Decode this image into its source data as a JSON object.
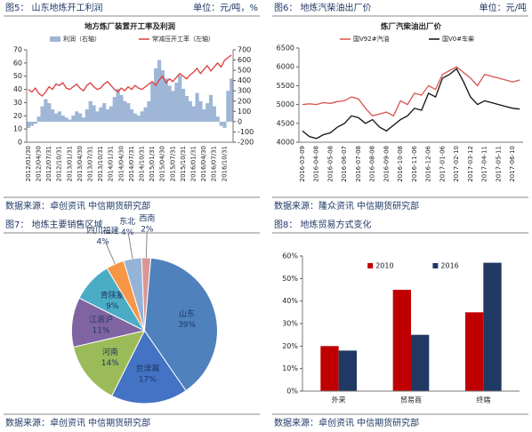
{
  "chart_data": [
    {
      "type": "combo",
      "figure_label": "图5：  山东地炼开工利润",
      "unit": "单位：元/吨，%",
      "source": "数据来源：卓创资讯  中信期货研究部",
      "title": "地方炼厂装置开工率及利润",
      "categories": [
        "2012/01/30",
        null,
        null,
        "2012/04/30",
        null,
        null,
        "2012/07/31",
        null,
        null,
        "2012/10/31",
        null,
        null,
        "2013/01/31",
        null,
        null,
        "2013/04/30",
        null,
        null,
        "2013/07/31",
        null,
        null,
        "2013/10/31",
        null,
        null,
        "2014/01/31",
        null,
        null,
        "2014/04/30",
        null,
        null,
        "2014/07/31",
        null,
        null,
        "2014/10/31",
        null,
        null,
        "2015/01/31",
        null,
        null,
        "2015/04/30",
        null,
        null,
        "2015/07/31",
        null,
        null,
        "2015/10/31",
        null,
        null,
        "2016/01/31",
        null,
        null,
        "2016/04/30",
        null,
        null,
        "2016/07/31",
        null,
        null,
        "2016/10/31",
        null,
        null
      ],
      "series": [
        {
          "name": "利润（右轴）",
          "type": "area",
          "axis": "y2",
          "color": "#9fb6d6",
          "values": [
            -60,
            -40,
            -20,
            50,
            150,
            220,
            180,
            120,
            80,
            100,
            60,
            40,
            20,
            60,
            100,
            80,
            40,
            120,
            200,
            160,
            100,
            140,
            180,
            120,
            150,
            240,
            320,
            260,
            200,
            180,
            120,
            80,
            60,
            100,
            140,
            200,
            380,
            520,
            600,
            500,
            420,
            350,
            300,
            380,
            450,
            320,
            250,
            200,
            150,
            280,
            200,
            120,
            180,
            260,
            150,
            50,
            -40,
            -60,
            300,
            420
          ]
        },
        {
          "name": "常减压开工率（左轴）",
          "type": "line",
          "color": "#e03a3a",
          "values": [
            40,
            38,
            41,
            37,
            35,
            38,
            42,
            40,
            44,
            43,
            45,
            41,
            40,
            42,
            44,
            41,
            39,
            43,
            45,
            42,
            40,
            41,
            44,
            46,
            43,
            40,
            38,
            41,
            39,
            42,
            40,
            43,
            41,
            40,
            42,
            44,
            46,
            43,
            47,
            50,
            45,
            48,
            46,
            49,
            52,
            50,
            48,
            51,
            53,
            56,
            52,
            55,
            58,
            54,
            57,
            60,
            57,
            62,
            64,
            66
          ]
        }
      ],
      "ylim": [
        0,
        70
      ],
      "yticks": [
        0,
        10,
        20,
        30,
        40,
        50,
        60,
        70
      ],
      "y2lim": [
        -200,
        700
      ],
      "y2ticks": [
        -200,
        -100,
        0,
        100,
        200,
        300,
        400,
        500,
        600,
        700
      ],
      "grid": false
    },
    {
      "type": "line",
      "figure_label": "图6：  地炼汽柴油出厂价",
      "unit": "单位：元/吨",
      "source": "数据来源：隆众资讯  中信期货研究部",
      "title": "炼厂汽柴油出厂价",
      "categories": [
        "2016-03-09",
        null,
        "2016-04-08",
        null,
        "2016-05-08",
        null,
        "2016-06-07",
        null,
        "2016-07-08",
        null,
        "2016-08-08",
        null,
        "2016-09-08",
        null,
        "2016-10-08",
        null,
        "2016-11-06",
        null,
        "2016-12-06",
        null,
        "2017-01-06",
        null,
        "2017-02-10",
        null,
        "2017-03-12",
        null,
        "2017-04-11",
        null,
        "2017-05-11",
        null,
        "2017-06-10",
        null
      ],
      "series": [
        {
          "name": "国V92#汽油",
          "color": "#d9534f",
          "values": [
            5000,
            5020,
            5000,
            5050,
            5030,
            5080,
            5100,
            5200,
            5150,
            4900,
            4700,
            4750,
            4800,
            4700,
            5100,
            5000,
            5300,
            5250,
            5500,
            5400,
            5800,
            5900,
            6000,
            5850,
            5700,
            5500,
            5800,
            5750,
            5700,
            5650,
            5600,
            5650
          ]
        },
        {
          "name": "国V0#车柴",
          "color": "#111111",
          "values": [
            4300,
            4150,
            4100,
            4200,
            4250,
            4400,
            4500,
            4700,
            4650,
            4500,
            4600,
            4400,
            4300,
            4450,
            4600,
            4700,
            4900,
            4850,
            5300,
            5200,
            5700,
            5800,
            5950,
            5600,
            5200,
            5000,
            5100,
            5050,
            5000,
            4950,
            4900,
            4880
          ]
        }
      ],
      "ylim": [
        4000,
        6500
      ],
      "yticks": [
        4000,
        4500,
        5000,
        5500,
        6000,
        6500
      ],
      "grid": false
    },
    {
      "type": "pie",
      "figure_label": "图7：  地炼主要销售区域",
      "source": "数据来源：卓创资讯  中信期货研究部",
      "categories": [
        "山东",
        "京津冀",
        "河南",
        "江浙沪",
        "青陕蒙",
        "四川福建",
        "东北",
        "西南"
      ],
      "values": [
        39,
        17,
        14,
        11,
        9,
        4,
        4,
        2
      ],
      "value_labels": [
        "39%",
        "17%",
        "14%",
        "11%",
        "9%",
        "4%",
        "4%",
        "2%"
      ],
      "colors": [
        "#4f81bd",
        "#4472c4",
        "#9bbb59",
        "#8064a2",
        "#4bacc6",
        "#f79646",
        "#95b3d7",
        "#d99694"
      ]
    },
    {
      "type": "bar",
      "figure_label": "图8：  地炼贸易方式变化",
      "source": "数据来源：卓创资讯  中信期货研究部",
      "categories": [
        "外采",
        "贸易商",
        "终端"
      ],
      "series": [
        {
          "name": "2010",
          "color": "#c00000",
          "values": [
            20,
            45,
            35
          ]
        },
        {
          "name": "2016",
          "color": "#1f3864",
          "values": [
            18,
            25,
            57
          ]
        }
      ],
      "ylim": [
        0,
        60
      ],
      "yticks": [
        {
          "value": 0,
          "label": "0%"
        },
        {
          "value": 10,
          "label": "10%"
        },
        {
          "value": 20,
          "label": "20%"
        },
        {
          "value": 30,
          "label": "30%"
        },
        {
          "value": 40,
          "label": "40%"
        },
        {
          "value": 50,
          "label": "50%"
        },
        {
          "value": 60,
          "label": "60%"
        }
      ],
      "grid": false
    }
  ]
}
